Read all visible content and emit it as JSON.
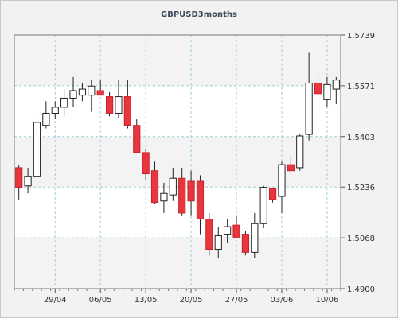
{
  "chart_data": {
    "type": "candlestick",
    "title": "GBPUSD3months",
    "xlabel": "",
    "ylabel": "",
    "ylim": [
      1.49,
      1.5739
    ],
    "y_ticks": [
      1.49,
      1.5068,
      1.5236,
      1.5403,
      1.5571,
      1.5739
    ],
    "y_tick_labels": [
      "1.4900",
      "1.5068",
      "1.5236",
      "1.5403",
      "1.5571",
      "1.5739"
    ],
    "x_ticks": [
      {
        "index": 4.5,
        "label": "29/04"
      },
      {
        "index": 9.5,
        "label": "06/05"
      },
      {
        "index": 14.5,
        "label": "13/05"
      },
      {
        "index": 19.5,
        "label": "20/05"
      },
      {
        "index": 24.5,
        "label": "27/05"
      },
      {
        "index": 29.5,
        "label": "03/06"
      },
      {
        "index": 34.5,
        "label": "10/06"
      }
    ],
    "grid": true,
    "up_color": "#ffffff",
    "down_color": "#e8363f",
    "candles": [
      {
        "o": 1.53,
        "h": 1.531,
        "l": 1.5195,
        "c": 1.5235
      },
      {
        "o": 1.524,
        "h": 1.53,
        "l": 1.5215,
        "c": 1.527
      },
      {
        "o": 1.527,
        "h": 1.546,
        "l": 1.5265,
        "c": 1.545
      },
      {
        "o": 1.544,
        "h": 1.552,
        "l": 1.543,
        "c": 1.548
      },
      {
        "o": 1.548,
        "h": 1.552,
        "l": 1.546,
        "c": 1.55
      },
      {
        "o": 1.55,
        "h": 1.556,
        "l": 1.547,
        "c": 1.553
      },
      {
        "o": 1.553,
        "h": 1.56,
        "l": 1.55,
        "c": 1.5555
      },
      {
        "o": 1.554,
        "h": 1.558,
        "l": 1.552,
        "c": 1.556
      },
      {
        "o": 1.554,
        "h": 1.559,
        "l": 1.5485,
        "c": 1.557
      },
      {
        "o": 1.5555,
        "h": 1.559,
        "l": 1.554,
        "c": 1.554
      },
      {
        "o": 1.5535,
        "h": 1.555,
        "l": 1.547,
        "c": 1.548
      },
      {
        "o": 1.548,
        "h": 1.559,
        "l": 1.5465,
        "c": 1.5535
      },
      {
        "o": 1.5535,
        "h": 1.559,
        "l": 1.543,
        "c": 1.544
      },
      {
        "o": 1.544,
        "h": 1.546,
        "l": 1.535,
        "c": 1.535
      },
      {
        "o": 1.535,
        "h": 1.536,
        "l": 1.526,
        "c": 1.528
      },
      {
        "o": 1.529,
        "h": 1.532,
        "l": 1.518,
        "c": 1.5185
      },
      {
        "o": 1.519,
        "h": 1.525,
        "l": 1.515,
        "c": 1.5215
      },
      {
        "o": 1.521,
        "h": 1.53,
        "l": 1.519,
        "c": 1.5265
      },
      {
        "o": 1.5265,
        "h": 1.53,
        "l": 1.514,
        "c": 1.515
      },
      {
        "o": 1.5255,
        "h": 1.529,
        "l": 1.514,
        "c": 1.519
      },
      {
        "o": 1.5255,
        "h": 1.5275,
        "l": 1.508,
        "c": 1.513
      },
      {
        "o": 1.513,
        "h": 1.515,
        "l": 1.501,
        "c": 1.503
      },
      {
        "o": 1.503,
        "h": 1.5105,
        "l": 1.5,
        "c": 1.5075
      },
      {
        "o": 1.508,
        "h": 1.513,
        "l": 1.505,
        "c": 1.5105
      },
      {
        "o": 1.511,
        "h": 1.514,
        "l": 1.507,
        "c": 1.507
      },
      {
        "o": 1.508,
        "h": 1.509,
        "l": 1.501,
        "c": 1.502
      },
      {
        "o": 1.502,
        "h": 1.515,
        "l": 1.5,
        "c": 1.5115
      },
      {
        "o": 1.5115,
        "h": 1.524,
        "l": 1.51,
        "c": 1.5235
      },
      {
        "o": 1.523,
        "h": 1.523,
        "l": 1.5185,
        "c": 1.5195
      },
      {
        "o": 1.5205,
        "h": 1.532,
        "l": 1.515,
        "c": 1.531
      },
      {
        "o": 1.531,
        "h": 1.534,
        "l": 1.529,
        "c": 1.529
      },
      {
        "o": 1.53,
        "h": 1.541,
        "l": 1.529,
        "c": 1.5405
      },
      {
        "o": 1.541,
        "h": 1.568,
        "l": 1.539,
        "c": 1.558
      },
      {
        "o": 1.558,
        "h": 1.561,
        "l": 1.548,
        "c": 1.5545
      },
      {
        "o": 1.5525,
        "h": 1.56,
        "l": 1.55,
        "c": 1.5575
      },
      {
        "o": 1.556,
        "h": 1.56,
        "l": 1.551,
        "c": 1.559
      }
    ]
  }
}
